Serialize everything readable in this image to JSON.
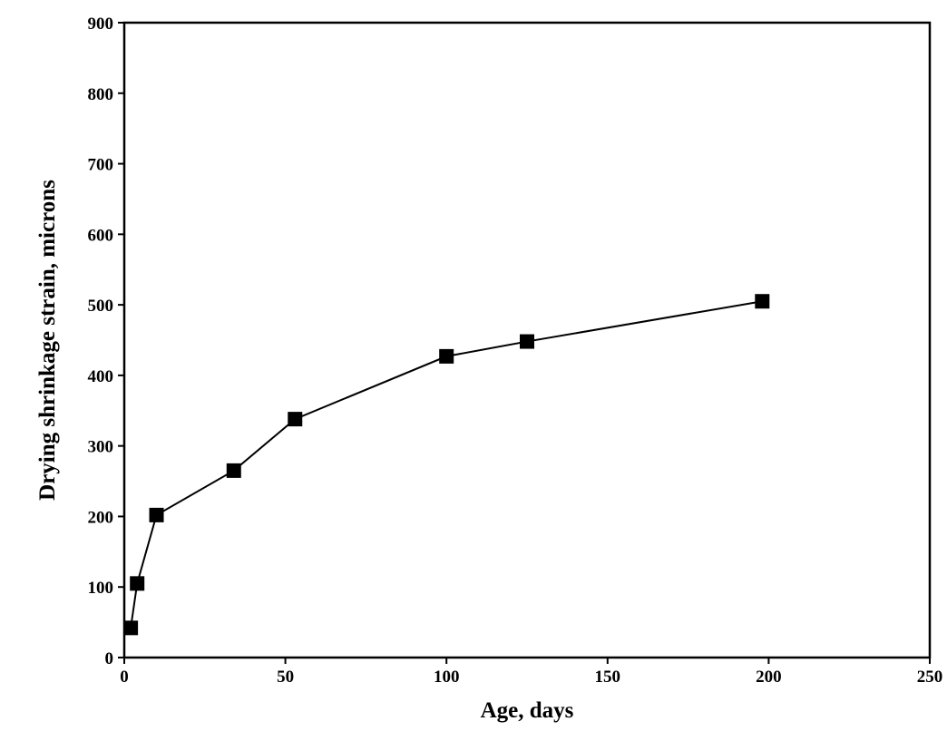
{
  "chart_data": {
    "type": "line",
    "x_label": "Age, days",
    "y_label": "Drying shrinkage strain, microns",
    "series": [
      {
        "name": "Drying shrinkage",
        "color": "#000000",
        "x": [
          2,
          4,
          10,
          34,
          53,
          100,
          125,
          198
        ],
        "values": [
          42,
          105,
          202,
          265,
          338,
          427,
          448,
          505
        ]
      }
    ],
    "xlim": [
      0,
      250
    ],
    "xticks": [
      0,
      50,
      100,
      150,
      200,
      250
    ],
    "ylim": [
      0,
      900
    ],
    "yticks": [
      0,
      100,
      200,
      300,
      400,
      500,
      600,
      700,
      800,
      900
    ],
    "marker": "square",
    "grid": false
  }
}
